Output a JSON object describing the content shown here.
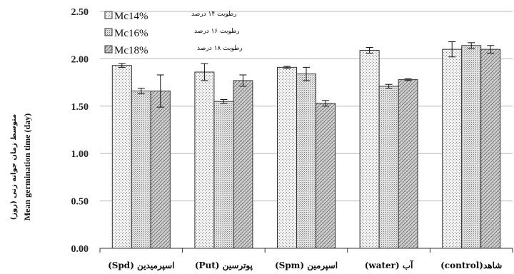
{
  "chart_data": {
    "type": "bar",
    "categories": [
      "اسپرمیدین (Spd)",
      "پوترسین (Put)",
      "اسپرمین (Spm)",
      "آب (water)",
      "شاهد(control)"
    ],
    "series": [
      {
        "name": "Mc14%",
        "name_fa": "رطوبت ۱۴ درصد",
        "values": [
          1.93,
          1.86,
          1.91,
          2.09,
          2.1
        ],
        "errors": [
          0.02,
          0.09,
          0.01,
          0.03,
          0.08
        ]
      },
      {
        "name": "Mc16%",
        "name_fa": "رطوبت ۱۶ درصد",
        "values": [
          1.66,
          1.55,
          1.84,
          1.71,
          2.14
        ],
        "errors": [
          0.03,
          0.02,
          0.07,
          0.02,
          0.03
        ]
      },
      {
        "name": "Mc18%",
        "name_fa": "رطوبت ۱۸ درصد",
        "values": [
          1.66,
          1.77,
          1.53,
          1.78,
          2.1
        ],
        "errors": [
          0.17,
          0.06,
          0.03,
          0.01,
          0.04
        ]
      }
    ],
    "ylim": [
      0,
      2.5
    ],
    "yticks": [
      "0.00",
      "0.50",
      "1.00",
      "1.50",
      "2.00",
      "2.50"
    ],
    "ylabel": "Mean germination time (day)",
    "ylabel_fa": "متوسط زمان جوانه زنی (روز)",
    "grid": "horizontal",
    "legend_position": "top-left"
  }
}
